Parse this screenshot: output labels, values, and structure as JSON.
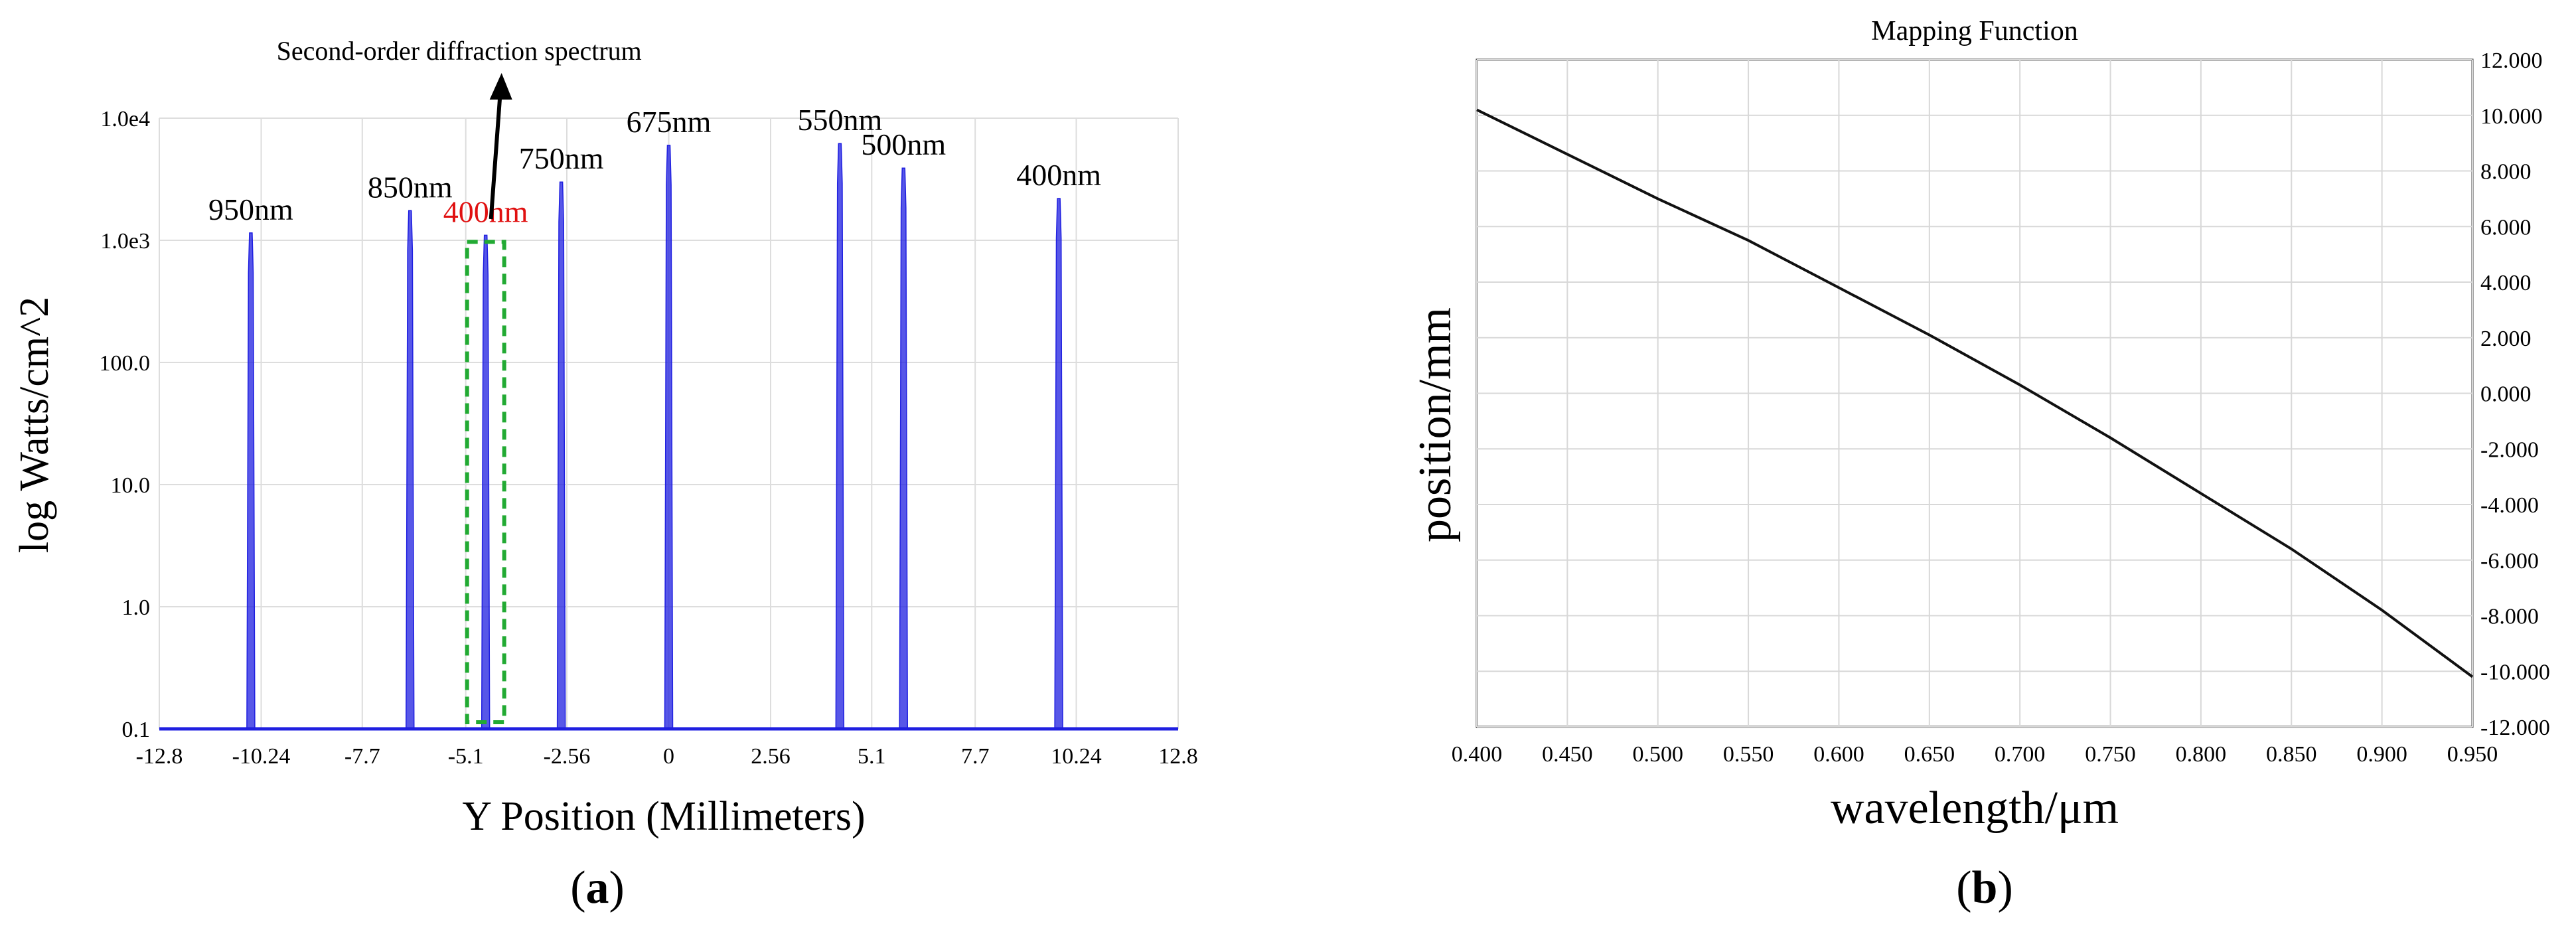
{
  "chart_data": [
    {
      "panel_label": "a",
      "type": "line",
      "title": "",
      "xlabel": "Y Position (Millimeters)",
      "ylabel": "log Watts/cm^2",
      "xlim": [
        -12.8,
        12.8
      ],
      "ylim": [
        0.1,
        10000
      ],
      "yscale": "log",
      "x_ticks": [
        -12.8,
        -10.24,
        -7.7,
        -5.1,
        -2.56,
        0,
        2.56,
        5.1,
        7.7,
        10.24,
        12.8
      ],
      "x_tick_labels": [
        "-12.8",
        "-10.24",
        "-7.7",
        "-5.1",
        "-2.56",
        "0",
        "2.56",
        "5.1",
        "7.7",
        "10.24",
        "12.8"
      ],
      "y_ticks": [
        0.1,
        1,
        10,
        100,
        1000,
        10000
      ],
      "y_tick_labels": [
        "0.1",
        "1.0",
        "10.0",
        "100.0",
        "1.0e3",
        "1.0e4"
      ],
      "grid": true,
      "line_color": "#1f1fe0",
      "baseline": 0.1,
      "peaks": [
        {
          "x": -10.5,
          "y": 1150,
          "label": "950nm",
          "label_color": "#000000"
        },
        {
          "x": -6.5,
          "y": 1750,
          "label": "850nm",
          "label_color": "#000000"
        },
        {
          "x": -4.6,
          "y": 1100,
          "label": "400nm",
          "label_color": "#e01010"
        },
        {
          "x": -2.7,
          "y": 3000,
          "label": "750nm",
          "label_color": "#000000"
        },
        {
          "x": 0.0,
          "y": 6000,
          "label": "675nm",
          "label_color": "#000000"
        },
        {
          "x": 4.3,
          "y": 6200,
          "label": "550nm",
          "label_color": "#000000"
        },
        {
          "x": 5.9,
          "y": 3900,
          "label": "500nm",
          "label_color": "#000000"
        },
        {
          "x": 9.8,
          "y": 2200,
          "label": "400nm",
          "label_color": "#000000"
        }
      ],
      "annotation": {
        "text": "Second-order diffraction spectrum",
        "arrow_target_x": -4.6,
        "box_color": "#22aa33",
        "box_x": [
          -5.1,
          -4.1
        ],
        "box_y": [
          0.1,
          1100
        ]
      }
    },
    {
      "panel_label": "b",
      "type": "line",
      "title": "Mapping Function",
      "xlabel": "wavelength/μm",
      "ylabel": "position/mm",
      "xlim": [
        0.4,
        0.95
      ],
      "ylim": [
        -12,
        12
      ],
      "x_ticks": [
        0.4,
        0.45,
        0.5,
        0.55,
        0.6,
        0.65,
        0.7,
        0.75,
        0.8,
        0.85,
        0.9,
        0.95
      ],
      "x_tick_labels": [
        "0.400",
        "0.450",
        "0.500",
        "0.550",
        "0.600",
        "0.650",
        "0.700",
        "0.750",
        "0.800",
        "0.850",
        "0.900",
        "0.950"
      ],
      "y_ticks": [
        12,
        10,
        8,
        6,
        4,
        2,
        0,
        -2,
        -4,
        -6,
        -8,
        -10,
        -12
      ],
      "y_tick_labels": [
        "12.000",
        "10.000",
        "8.000",
        "6.000",
        "4.000",
        "2.000",
        "0.000",
        "-2.000",
        "-4.000",
        "-6.000",
        "-8.000",
        "-10.000",
        "-12.000"
      ],
      "y_axis_side": "right",
      "grid": true,
      "line_color": "#111111",
      "series": [
        {
          "x": [
            0.4,
            0.45,
            0.5,
            0.55,
            0.6,
            0.65,
            0.7,
            0.75,
            0.8,
            0.85,
            0.9,
            0.95
          ],
          "y": [
            10.2,
            8.6,
            7.0,
            5.5,
            3.8,
            2.1,
            0.3,
            -1.6,
            -3.6,
            -5.6,
            -7.8,
            -10.2
          ]
        }
      ]
    }
  ]
}
